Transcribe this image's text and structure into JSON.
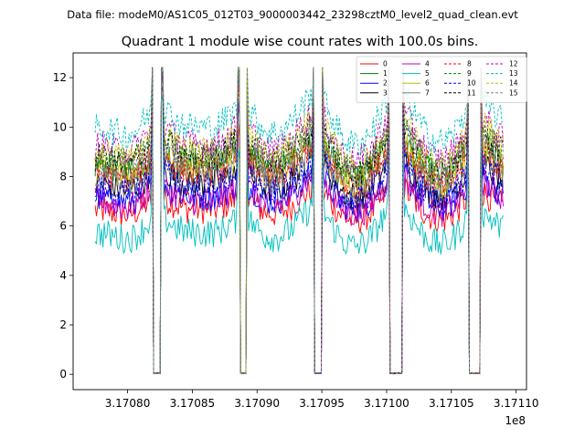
{
  "suptitle": "Data file: modeM0/AS1C05_012T03_9000003442_23298cztM0_level2_quad_clean.evt",
  "chart_data": {
    "type": "line",
    "title": "Quadrant 1 module wise count rates with 100.0s bins.",
    "xlabel": "",
    "ylabel": "",
    "x_offset_label": "1e8",
    "xlim": [
      3.170758,
      3.171108
    ],
    "ylim": [
      -0.62,
      13.0
    ],
    "xticks": [
      3.1708,
      3.17085,
      3.1709,
      3.17095,
      3.171,
      3.17105,
      3.1711
    ],
    "xtick_labels": [
      "3.17080",
      "3.17085",
      "3.17090",
      "3.17095",
      "3.17100",
      "3.17105",
      "3.17110"
    ],
    "yticks": [
      0,
      2,
      4,
      6,
      8,
      10,
      12
    ],
    "ytick_labels": [
      "0",
      "2",
      "4",
      "6",
      "8",
      "10",
      "12"
    ],
    "x_start": 3.170775,
    "x_end": 3.17109,
    "n_points": 315,
    "gaps": [
      [
        3.1708195,
        3.170826
      ],
      [
        3.1708865,
        3.170892
      ],
      [
        3.170944,
        3.17095
      ],
      [
        3.1710025,
        3.1710125
      ],
      [
        3.1710635,
        3.1710725
      ]
    ],
    "gap_note": "count rate drops to ~0 during each gap; spikes to ~10-12.4 at gap edges",
    "series": [
      {
        "name": "0",
        "color": "#ff0000",
        "dash": "solid",
        "mean": 6.4
      },
      {
        "name": "1",
        "color": "#008000",
        "dash": "solid",
        "mean": 8.2
      },
      {
        "name": "2",
        "color": "#0000ff",
        "dash": "solid",
        "mean": 6.9
      },
      {
        "name": "3",
        "color": "#000000",
        "dash": "solid",
        "mean": 7.4
      },
      {
        "name": "4",
        "color": "#bf00bf",
        "dash": "solid",
        "mean": 6.7
      },
      {
        "name": "5",
        "color": "#00bfbf",
        "dash": "solid",
        "mean": 5.4
      },
      {
        "name": "6",
        "color": "#bfbf00",
        "dash": "solid",
        "mean": 7.9
      },
      {
        "name": "7",
        "color": "#808080",
        "dash": "solid",
        "mean": 7.6
      },
      {
        "name": "8",
        "color": "#ff0000",
        "dash": "dashed",
        "mean": 7.8
      },
      {
        "name": "9",
        "color": "#008000",
        "dash": "dashed",
        "mean": 8.5
      },
      {
        "name": "10",
        "color": "#0000ff",
        "dash": "dashed",
        "mean": 7.2
      },
      {
        "name": "11",
        "color": "#000000",
        "dash": "dashed",
        "mean": 8.4
      },
      {
        "name": "12",
        "color": "#bf00bf",
        "dash": "dashed",
        "mean": 8.9
      },
      {
        "name": "13",
        "color": "#00bfbf",
        "dash": "dashed",
        "mean": 9.6
      },
      {
        "name": "14",
        "color": "#bfbf00",
        "dash": "dashed",
        "mean": 8.6
      },
      {
        "name": "15",
        "color": "#808080",
        "dash": "dashed",
        "mean": 8.1
      }
    ],
    "legend_position": "top-right",
    "legend_columns": 4,
    "grid": false
  }
}
